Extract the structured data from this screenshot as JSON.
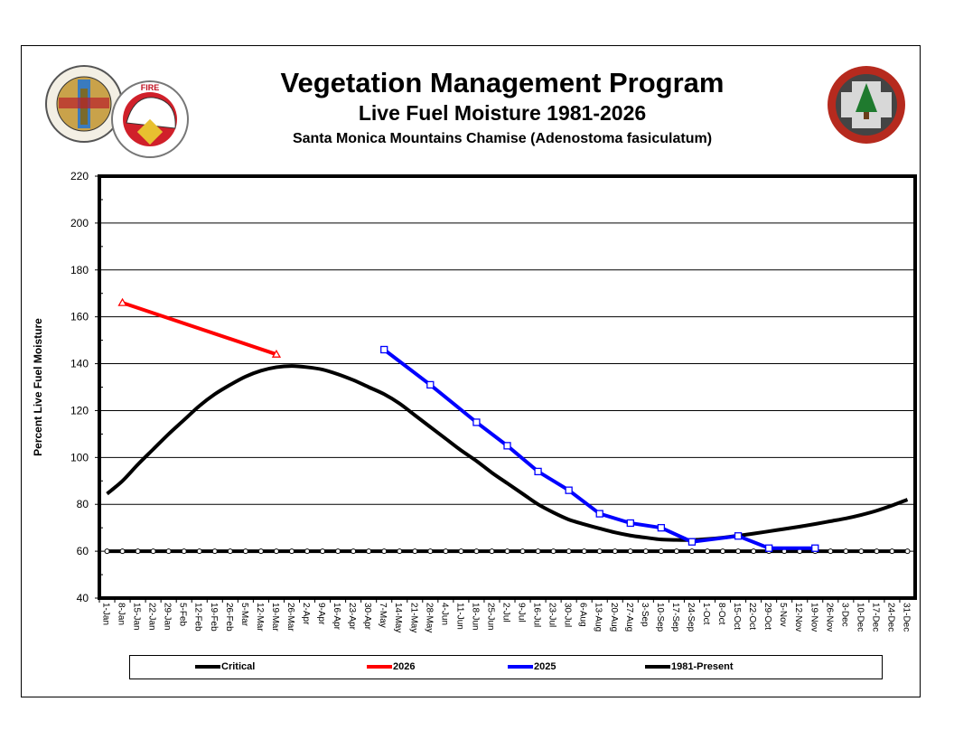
{
  "header": {
    "title": "Vegetation Management Program",
    "subtitle": "Live Fuel Moisture 1981-2026",
    "species": "Santa Monica Mountains Chamise (Adenostoma fasiculatum)"
  },
  "logos": {
    "county_seal": "COUNTY OF LOS ANGELES CALIFORNIA",
    "fire_department": "FIRE DEPARTMENT",
    "forestry_division": "FORESTRY DIVISION EST. 1911"
  },
  "chart_data": {
    "type": "line",
    "title": "Live Fuel Moisture 1981-2026",
    "xlabel": "",
    "ylabel": "Percent Live Fuel Moisture",
    "ylim": [
      40,
      220
    ],
    "yticks": [
      40,
      60,
      80,
      100,
      120,
      140,
      160,
      180,
      200,
      220
    ],
    "grid": true,
    "legend_position": "bottom",
    "categories": [
      "1-Jan",
      "8-Jan",
      "15-Jan",
      "22-Jan",
      "29-Jan",
      "5-Feb",
      "12-Feb",
      "19-Feb",
      "26-Feb",
      "5-Mar",
      "12-Mar",
      "19-Mar",
      "26-Mar",
      "2-Apr",
      "9-Apr",
      "16-Apr",
      "23-Apr",
      "30-Apr",
      "7-May",
      "14-May",
      "21-May",
      "28-May",
      "4-Jun",
      "11-Jun",
      "18-Jun",
      "25-Jun",
      "2-Jul",
      "9-Jul",
      "16-Jul",
      "23-Jul",
      "30-Jul",
      "6-Aug",
      "13-Aug",
      "20-Aug",
      "27-Aug",
      "3-Sep",
      "10-Sep",
      "17-Sep",
      "24-Sep",
      "1-Oct",
      "8-Oct",
      "15-Oct",
      "22-Oct",
      "29-Oct",
      "5-Nov",
      "12-Nov",
      "19-Nov",
      "26-Nov",
      "3-Dec",
      "10-Dec",
      "17-Dec",
      "24-Dec",
      "31-Dec"
    ],
    "series": [
      {
        "name": "Critical",
        "color": "#000000",
        "marker": "circle",
        "smooth": false,
        "values": [
          60,
          60,
          60,
          60,
          60,
          60,
          60,
          60,
          60,
          60,
          60,
          60,
          60,
          60,
          60,
          60,
          60,
          60,
          60,
          60,
          60,
          60,
          60,
          60,
          60,
          60,
          60,
          60,
          60,
          60,
          60,
          60,
          60,
          60,
          60,
          60,
          60,
          60,
          60,
          60,
          60,
          60,
          60,
          60,
          60,
          60,
          60,
          60,
          60,
          60,
          60,
          60,
          60
        ]
      },
      {
        "name": "2026",
        "color": "#ff0000",
        "marker": "triangle",
        "smooth": false,
        "points": [
          [
            "8-Jan",
            166
          ],
          [
            "19-Mar",
            144
          ]
        ]
      },
      {
        "name": "2025",
        "color": "#0000ff",
        "marker": "square",
        "smooth": false,
        "points": [
          [
            "7-May",
            146
          ],
          [
            "28-May",
            131
          ],
          [
            "18-Jun",
            115
          ],
          [
            "2-Jul",
            105
          ],
          [
            "16-Jul",
            94
          ],
          [
            "30-Jul",
            86
          ],
          [
            "13-Aug",
            76
          ],
          [
            "27-Aug",
            72
          ],
          [
            "10-Sep",
            70
          ],
          [
            "24-Sep",
            64
          ],
          [
            "15-Oct",
            66.5
          ],
          [
            "29-Oct",
            61.3
          ],
          [
            "19-Nov",
            61.3
          ]
        ]
      },
      {
        "name": "1981-Present",
        "color": "#000000",
        "marker": "none",
        "smooth": true,
        "values": [
          84.5,
          90,
          97,
          103.5,
          110,
          116,
          122,
          127,
          131,
          134.5,
          137,
          138.5,
          139,
          138.5,
          137.5,
          135.5,
          133,
          130,
          127,
          123,
          118,
          113,
          108,
          103,
          98.5,
          93.5,
          89,
          84.5,
          80,
          76.5,
          73.5,
          71.5,
          69.7,
          68,
          66.7,
          65.8,
          65,
          64.8,
          64.8,
          65.2,
          65.8,
          66.6,
          67.5,
          68.5,
          69.5,
          70.5,
          71.6,
          72.8,
          74,
          75.5,
          77.3,
          79.5,
          82
        ]
      }
    ]
  }
}
